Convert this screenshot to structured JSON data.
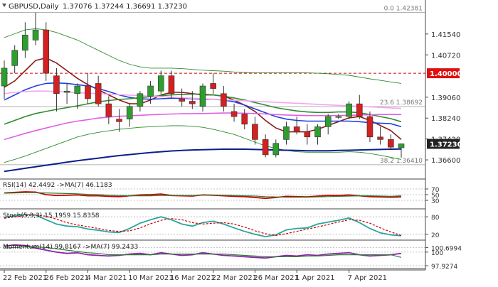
{
  "chart_data": {
    "type": "candlestick",
    "symbol_label": "GBPUSD,Daily",
    "ohlc_label": "1.37076 1.37244 1.36691 1.37230",
    "last_price_tag": "1.37230",
    "price_axis": {
      "ylim": [
        1.3585,
        1.4265
      ],
      "ticks": [
        "1.41540",
        "1.40720",
        "1.39060",
        "1.38240",
        "1.37420",
        "1.36600"
      ]
    },
    "highlight_levels": [
      {
        "label": "1.40000",
        "value": 1.4,
        "style": "dashed",
        "color": "#cc0000"
      }
    ],
    "fib_levels": [
      {
        "label": "0.0 1.42381",
        "value": 1.42381
      },
      {
        "label": "23.6 1.38692",
        "value": 1.38692
      },
      {
        "label": "38.2 1.36410",
        "value": 1.3641
      }
    ],
    "x_tick_labels": [
      "22 Feb 2021",
      "26 Feb 2021",
      "4 Mar 2021",
      "10 Mar 2021",
      "16 Mar 2021",
      "22 Mar 2021",
      "26 Mar 2021",
      "1 Apr 2021",
      "7 Apr 2021"
    ],
    "candles": [
      {
        "o": 1.395,
        "h": 1.405,
        "l": 1.39,
        "c": 1.402
      },
      {
        "o": 1.403,
        "h": 1.411,
        "l": 1.4,
        "c": 1.409
      },
      {
        "o": 1.409,
        "h": 1.42,
        "l": 1.406,
        "c": 1.415
      },
      {
        "o": 1.413,
        "h": 1.4238,
        "l": 1.411,
        "c": 1.417
      },
      {
        "o": 1.417,
        "h": 1.42,
        "l": 1.397,
        "c": 1.4
      },
      {
        "o": 1.399,
        "h": 1.402,
        "l": 1.385,
        "c": 1.392
      },
      {
        "o": 1.3925,
        "h": 1.396,
        "l": 1.388,
        "c": 1.393
      },
      {
        "o": 1.392,
        "h": 1.396,
        "l": 1.386,
        "c": 1.395
      },
      {
        "o": 1.395,
        "h": 1.4,
        "l": 1.388,
        "c": 1.39
      },
      {
        "o": 1.396,
        "h": 1.399,
        "l": 1.387,
        "c": 1.388
      },
      {
        "o": 1.388,
        "h": 1.391,
        "l": 1.38,
        "c": 1.383
      },
      {
        "o": 1.382,
        "h": 1.386,
        "l": 1.377,
        "c": 1.381
      },
      {
        "o": 1.382,
        "h": 1.388,
        "l": 1.379,
        "c": 1.387
      },
      {
        "o": 1.387,
        "h": 1.393,
        "l": 1.385,
        "c": 1.392
      },
      {
        "o": 1.391,
        "h": 1.397,
        "l": 1.388,
        "c": 1.395
      },
      {
        "o": 1.393,
        "h": 1.401,
        "l": 1.392,
        "c": 1.399
      },
      {
        "o": 1.399,
        "h": 1.401,
        "l": 1.39,
        "c": 1.392
      },
      {
        "o": 1.39,
        "h": 1.394,
        "l": 1.387,
        "c": 1.389
      },
      {
        "o": 1.389,
        "h": 1.393,
        "l": 1.386,
        "c": 1.388
      },
      {
        "o": 1.387,
        "h": 1.396,
        "l": 1.385,
        "c": 1.395
      },
      {
        "o": 1.396,
        "h": 1.4,
        "l": 1.392,
        "c": 1.394
      },
      {
        "o": 1.392,
        "h": 1.395,
        "l": 1.385,
        "c": 1.387
      },
      {
        "o": 1.385,
        "h": 1.388,
        "l": 1.381,
        "c": 1.383
      },
      {
        "o": 1.384,
        "h": 1.386,
        "l": 1.378,
        "c": 1.38
      },
      {
        "o": 1.38,
        "h": 1.383,
        "l": 1.372,
        "c": 1.374
      },
      {
        "o": 1.374,
        "h": 1.376,
        "l": 1.367,
        "c": 1.368
      },
      {
        "o": 1.368,
        "h": 1.374,
        "l": 1.367,
        "c": 1.3725
      },
      {
        "o": 1.374,
        "h": 1.381,
        "l": 1.372,
        "c": 1.379
      },
      {
        "o": 1.379,
        "h": 1.383,
        "l": 1.376,
        "c": 1.377
      },
      {
        "o": 1.377,
        "h": 1.38,
        "l": 1.372,
        "c": 1.375
      },
      {
        "o": 1.375,
        "h": 1.38,
        "l": 1.372,
        "c": 1.379
      },
      {
        "o": 1.379,
        "h": 1.384,
        "l": 1.376,
        "c": 1.383
      },
      {
        "o": 1.383,
        "h": 1.384,
        "l": 1.382,
        "c": 1.383
      },
      {
        "o": 1.383,
        "h": 1.389,
        "l": 1.382,
        "c": 1.388
      },
      {
        "o": 1.388,
        "h": 1.3915,
        "l": 1.382,
        "c": 1.383
      },
      {
        "o": 1.383,
        "h": 1.385,
        "l": 1.373,
        "c": 1.375
      },
      {
        "o": 1.375,
        "h": 1.379,
        "l": 1.372,
        "c": 1.374
      },
      {
        "o": 1.374,
        "h": 1.376,
        "l": 1.37,
        "c": 1.371
      },
      {
        "o": 1.37076,
        "h": 1.37244,
        "l": 1.36691,
        "c": 1.3723
      }
    ],
    "rsi": {
      "label": "RSI(14) 42.4492 ->MA(7) 46.1183",
      "ylim": [
        0,
        100
      ],
      "ticks": [
        "70",
        "50",
        "30"
      ],
      "series": [
        {
          "name": "RSI",
          "color": "#cc0000",
          "values": [
            56,
            58,
            60,
            59,
            50,
            47,
            48,
            49,
            46,
            46,
            44,
            43,
            46,
            49,
            50,
            52,
            47,
            46,
            45,
            49,
            48,
            46,
            44,
            43,
            40,
            37,
            40,
            44,
            43,
            42,
            45,
            47,
            47,
            49,
            46,
            43,
            42,
            41,
            42
          ]
        },
        {
          "name": "MA",
          "color": "#2e7d32",
          "values": [
            55,
            56,
            57,
            57,
            56,
            55,
            54,
            53,
            51,
            50,
            48,
            47,
            46,
            46,
            46,
            47,
            47,
            47,
            47,
            48,
            48,
            48,
            47,
            46,
            45,
            43,
            42,
            41,
            41,
            41,
            42,
            43,
            44,
            45,
            46,
            46,
            45,
            44,
            46
          ]
        }
      ]
    },
    "stoch": {
      "label": "Stoch(5,3,3) 15.1959 15.8358",
      "ylim": [
        0,
        100
      ],
      "ticks": [
        "80",
        "20"
      ],
      "series": [
        {
          "name": "Stoch",
          "color": "#26a69a",
          "values": [
            78,
            84,
            88,
            86,
            70,
            55,
            48,
            46,
            38,
            34,
            28,
            26,
            40,
            58,
            70,
            80,
            70,
            55,
            48,
            60,
            65,
            55,
            42,
            30,
            20,
            12,
            18,
            35,
            40,
            42,
            55,
            62,
            68,
            76,
            60,
            40,
            25,
            18,
            15
          ]
        },
        {
          "name": "Signal",
          "color": "#cc0000",
          "values": [
            75,
            80,
            84,
            86,
            82,
            72,
            60,
            52,
            46,
            40,
            33,
            30,
            32,
            42,
            56,
            68,
            74,
            70,
            60,
            55,
            58,
            60,
            55,
            45,
            32,
            22,
            16,
            22,
            30,
            38,
            45,
            54,
            62,
            70,
            68,
            58,
            42,
            28,
            16
          ]
        }
      ]
    },
    "momentum": {
      "label": "Momentum(14) 99.8167 ->MA(7) 99.2433",
      "ylim": [
        97.5,
        101.5
      ],
      "ticks": [
        "100.6994",
        "100",
        "97.9274"
      ],
      "series": [
        {
          "name": "Momentum",
          "color": "#8e24aa",
          "values": [
            100.9,
            101.1,
            101.0,
            100.6,
            100.3,
            100.0,
            99.8,
            99.9,
            99.6,
            99.5,
            99.4,
            99.5,
            99.7,
            99.8,
            99.6,
            99.9,
            99.7,
            99.5,
            99.6,
            99.9,
            99.7,
            99.5,
            99.4,
            99.3,
            99.2,
            99.1,
            99.3,
            99.5,
            99.4,
            99.6,
            99.5,
            99.7,
            99.8,
            99.9,
            99.6,
            99.4,
            99.5,
            99.6,
            99.8
          ]
        },
        {
          "name": "MA",
          "color": "#2e7d32",
          "values": [
            100.6,
            100.7,
            100.8,
            100.8,
            100.7,
            100.5,
            100.3,
            100.1,
            99.9,
            99.8,
            99.6,
            99.6,
            99.6,
            99.6,
            99.6,
            99.7,
            99.7,
            99.7,
            99.7,
            99.7,
            99.7,
            99.7,
            99.6,
            99.5,
            99.4,
            99.3,
            99.3,
            99.3,
            99.3,
            99.4,
            99.4,
            99.5,
            99.6,
            99.6,
            99.6,
            99.6,
            99.6,
            99.6,
            99.2
          ]
        }
      ]
    },
    "moving_averages": [
      {
        "name": "MA-darkred",
        "color": "#8b1a1a",
        "values": [
          1.3945,
          1.397,
          1.401,
          1.405,
          1.406,
          1.404,
          1.401,
          1.398,
          1.3955,
          1.3935,
          1.3915,
          1.3895,
          1.388,
          1.388,
          1.3895,
          1.3915,
          1.3925,
          1.3925,
          1.392,
          1.3915,
          1.3915,
          1.391,
          1.3895,
          1.3875,
          1.385,
          1.3815,
          1.3785,
          1.377,
          1.377,
          1.377,
          1.378,
          1.3795,
          1.381,
          1.3825,
          1.383,
          1.3815,
          1.3795,
          1.3775,
          1.374
        ]
      },
      {
        "name": "MA-blue",
        "color": "#1e40e0",
        "values": [
          1.3895,
          1.3915,
          1.3935,
          1.395,
          1.396,
          1.3962,
          1.396,
          1.3955,
          1.395,
          1.394,
          1.3928,
          1.3915,
          1.3905,
          1.39,
          1.3898,
          1.39,
          1.3902,
          1.3902,
          1.39,
          1.3898,
          1.3898,
          1.3895,
          1.3888,
          1.3875,
          1.386,
          1.3845,
          1.383,
          1.382,
          1.3815,
          1.3812,
          1.3812,
          1.3812,
          1.3812,
          1.3812,
          1.381,
          1.3806,
          1.3804,
          1.3802,
          1.379
        ]
      },
      {
        "name": "MA-green",
        "color": "#2e8b2e",
        "values": [
          1.38,
          1.3815,
          1.383,
          1.3842,
          1.385,
          1.3858,
          1.3865,
          1.3872,
          1.388,
          1.3888,
          1.3893,
          1.3897,
          1.39,
          1.3904,
          1.3908,
          1.3912,
          1.3915,
          1.3917,
          1.3918,
          1.3918,
          1.3915,
          1.391,
          1.3903,
          1.3895,
          1.3885,
          1.3875,
          1.3865,
          1.3858,
          1.3852,
          1.3848,
          1.3846,
          1.3846,
          1.3848,
          1.3848,
          1.3845,
          1.3838,
          1.383,
          1.3822,
          1.381
        ]
      },
      {
        "name": "MA-violet",
        "color": "#e060e0",
        "values": [
          1.374,
          1.3752,
          1.3764,
          1.3775,
          1.3785,
          1.3795,
          1.3805,
          1.3812,
          1.3818,
          1.3824,
          1.3828,
          1.3831,
          1.3833,
          1.3835,
          1.3837,
          1.3839,
          1.384,
          1.3841,
          1.3841,
          1.3842,
          1.3843,
          1.3844,
          1.3844,
          1.3843,
          1.3842,
          1.384,
          1.3838,
          1.3836,
          1.3835,
          1.3834,
          1.3834,
          1.3834,
          1.3834,
          1.3835,
          1.3836,
          1.3837,
          1.3838,
          1.3838,
          1.3838
        ]
      },
      {
        "name": "MA-pink",
        "color": "#f4a6f0",
        "values": [
          1.392,
          1.3925,
          1.3928,
          1.393,
          1.393,
          1.3928,
          1.3926,
          1.3924,
          1.3922,
          1.392,
          1.3918,
          1.3916,
          1.3914,
          1.3912,
          1.391,
          1.3908,
          1.3906,
          1.3904,
          1.3902,
          1.39,
          1.3898,
          1.3896,
          1.3894,
          1.3892,
          1.389,
          1.3888,
          1.3886,
          1.3884,
          1.3882,
          1.388,
          1.3878,
          1.3876,
          1.3874,
          1.3872,
          1.387,
          1.3868,
          1.3866,
          1.3864,
          1.3862
        ]
      },
      {
        "name": "Env-upper",
        "color": "#2e8b2e",
        "values": [
          1.414,
          1.4155,
          1.417,
          1.4175,
          1.417,
          1.416,
          1.4145,
          1.413,
          1.411,
          1.409,
          1.407,
          1.405,
          1.4035,
          1.4025,
          1.402,
          1.402,
          1.402,
          1.4018,
          1.4015,
          1.4012,
          1.401,
          1.4008,
          1.4005,
          1.4003,
          1.4002,
          1.4002,
          1.4002,
          1.4002,
          1.4002,
          1.4002,
          1.4,
          1.3998,
          1.3995,
          1.3992,
          1.3985,
          1.3978,
          1.3972,
          1.3966,
          1.396
        ]
      },
      {
        "name": "Env-lower",
        "color": "#2e8b2e",
        "values": [
          1.365,
          1.3662,
          1.3675,
          1.369,
          1.3705,
          1.372,
          1.3735,
          1.375,
          1.376,
          1.3768,
          1.3774,
          1.378,
          1.3784,
          1.3788,
          1.379,
          1.3792,
          1.3794,
          1.3794,
          1.3792,
          1.3788,
          1.378,
          1.377,
          1.376,
          1.3745,
          1.373,
          1.3715,
          1.3705,
          1.3697,
          1.3692,
          1.369,
          1.369,
          1.369,
          1.369,
          1.3692,
          1.369,
          1.3685,
          1.3678,
          1.367,
          1.3662
        ]
      },
      {
        "name": "Trendline",
        "color": "#0b1f8a",
        "values": [
          1.3615,
          1.3621,
          1.3627,
          1.3633,
          1.3639,
          1.3645,
          1.3651,
          1.3657,
          1.3662,
          1.3667,
          1.3672,
          1.3677,
          1.3681,
          1.3685,
          1.3689,
          1.3692,
          1.3695,
          1.3697,
          1.3699,
          1.37,
          1.3701,
          1.3702,
          1.3702,
          1.3702,
          1.3701,
          1.37,
          1.3699,
          1.3698,
          1.3697,
          1.3696,
          1.3696,
          1.3696,
          1.3697,
          1.3698,
          1.3699,
          1.37,
          1.3701,
          1.3702,
          1.3703
        ]
      }
    ],
    "colors": {
      "bull": "#2e9e2e",
      "bear": "#d32020",
      "grid": "#d8d8d8",
      "axis_text": "#333333",
      "tag_bg": "#222222",
      "tag_fg": "#ffffff",
      "level_tag_bg": "#e01010"
    }
  }
}
